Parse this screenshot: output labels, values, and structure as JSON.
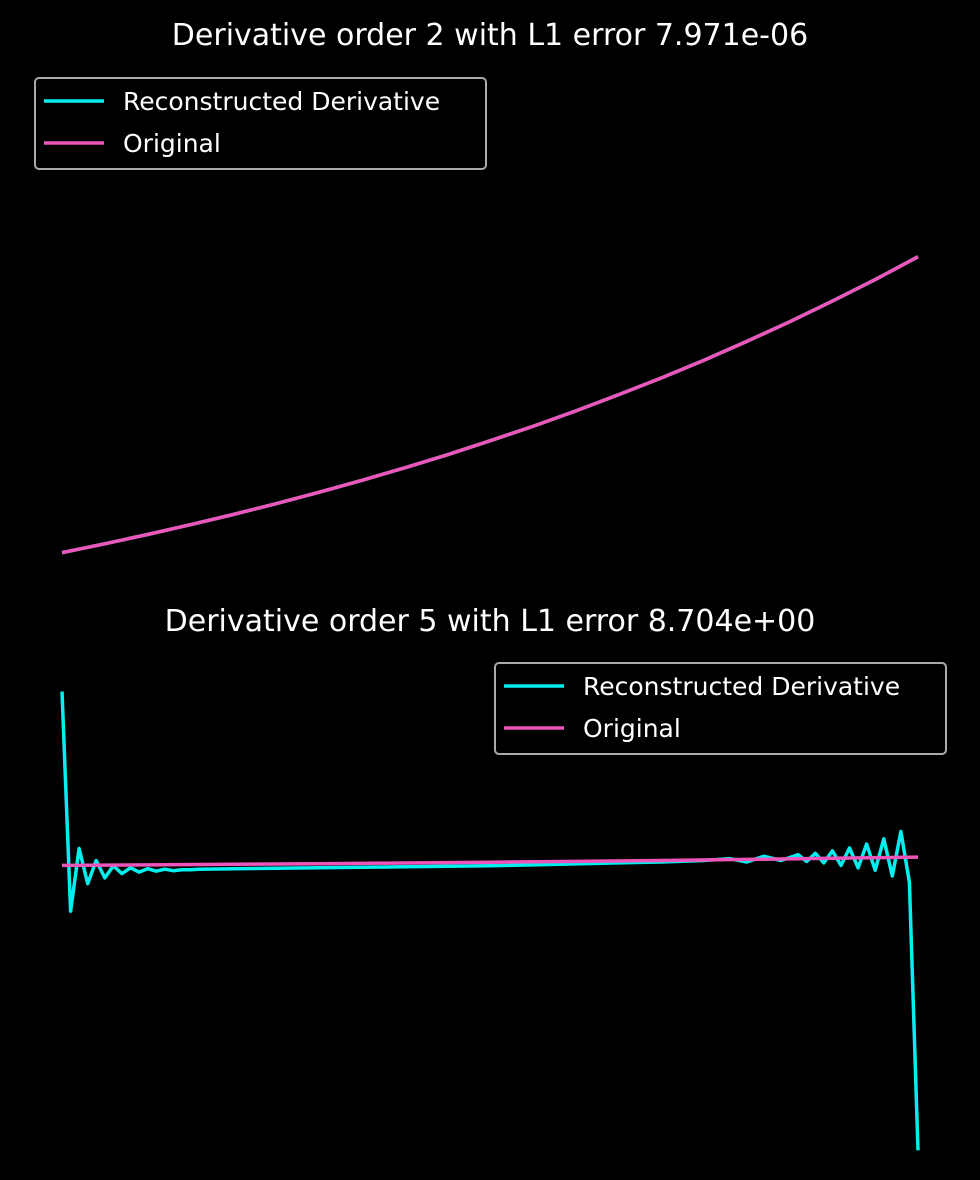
{
  "colors": {
    "background": "#000000",
    "reconstructed": "#00F0F0",
    "original": "#EE55BB",
    "legend_border": "#AAAAAA",
    "text": "#FFFFFF"
  },
  "chart_data": [
    {
      "type": "line",
      "title": "Derivative order 2 with L1 error 7.971e-06",
      "xlabel": "",
      "ylabel": "",
      "axes_visible": false,
      "grid": false,
      "legend_placement": "upper-left",
      "xlim": [
        0,
        1
      ],
      "ylim": [
        -0.13,
        2.86
      ],
      "series": [
        {
          "name": "Reconstructed Derivative",
          "color": "#00F0F0",
          "x": [
            0,
            0.05,
            0.1,
            0.15,
            0.2,
            0.25,
            0.3,
            0.35,
            0.4,
            0.45,
            0.5,
            0.55,
            0.6,
            0.65,
            0.7,
            0.75,
            0.8,
            0.85,
            0.9,
            0.95,
            1.0
          ],
          "values": [
            0.0,
            0.051,
            0.105,
            0.162,
            0.221,
            0.284,
            0.35,
            0.419,
            0.492,
            0.568,
            0.649,
            0.733,
            0.822,
            0.916,
            1.014,
            1.117,
            1.226,
            1.34,
            1.46,
            1.585,
            1.718
          ]
        },
        {
          "name": "Original",
          "color": "#EE55BB",
          "x": [
            0,
            0.05,
            0.1,
            0.15,
            0.2,
            0.25,
            0.3,
            0.35,
            0.4,
            0.45,
            0.5,
            0.55,
            0.6,
            0.65,
            0.7,
            0.75,
            0.8,
            0.85,
            0.9,
            0.95,
            1.0
          ],
          "values": [
            0.0,
            0.051,
            0.105,
            0.162,
            0.221,
            0.284,
            0.35,
            0.419,
            0.492,
            0.568,
            0.649,
            0.733,
            0.822,
            0.916,
            1.014,
            1.117,
            1.226,
            1.34,
            1.46,
            1.585,
            1.718
          ]
        }
      ]
    },
    {
      "type": "line",
      "title": "Derivative order 5 with L1 error 8.704e+00",
      "xlabel": "",
      "ylabel": "",
      "axes_visible": false,
      "grid": false,
      "legend_placement": "upper-right",
      "xlim": [
        0,
        1
      ],
      "ylim": [
        -60,
        46
      ],
      "series": [
        {
          "name": "Reconstructed Derivative",
          "color": "#00F0F0",
          "x": [
            0,
            0.01,
            0.02,
            0.03,
            0.04,
            0.05,
            0.06,
            0.07,
            0.08,
            0.09,
            0.1,
            0.11,
            0.12,
            0.13,
            0.14,
            0.15,
            0.16,
            0.18,
            0.2,
            0.25,
            0.3,
            0.35,
            0.4,
            0.45,
            0.5,
            0.55,
            0.6,
            0.65,
            0.7,
            0.75,
            0.78,
            0.8,
            0.82,
            0.84,
            0.86,
            0.87,
            0.88,
            0.89,
            0.9,
            0.91,
            0.92,
            0.93,
            0.94,
            0.95,
            0.96,
            0.97,
            0.98,
            0.99,
            1.0
          ],
          "values": [
            37.0,
            -8.5,
            4.5,
            -2.8,
            2.0,
            -1.6,
            0.9,
            -0.7,
            0.5,
            -0.4,
            0.3,
            -0.2,
            0.2,
            -0.1,
            0.1,
            0.1,
            0.2,
            0.25,
            0.3,
            0.4,
            0.5,
            0.6,
            0.7,
            0.8,
            0.9,
            1.1,
            1.3,
            1.5,
            1.7,
            2.0,
            2.4,
            1.7,
            2.9,
            2.0,
            3.2,
            1.8,
            3.5,
            1.5,
            4.0,
            1.0,
            4.6,
            0.5,
            5.4,
            0.0,
            6.5,
            -1.2,
            8.0,
            -2.5,
            -58.0
          ]
        },
        {
          "name": "Original",
          "color": "#EE55BB",
          "x": [
            0,
            0.1,
            0.2,
            0.3,
            0.4,
            0.5,
            0.6,
            0.7,
            0.8,
            0.9,
            1.0
          ],
          "values": [
            1.0,
            1.105,
            1.221,
            1.35,
            1.492,
            1.649,
            1.822,
            2.014,
            2.226,
            2.46,
            2.718
          ]
        }
      ]
    }
  ]
}
